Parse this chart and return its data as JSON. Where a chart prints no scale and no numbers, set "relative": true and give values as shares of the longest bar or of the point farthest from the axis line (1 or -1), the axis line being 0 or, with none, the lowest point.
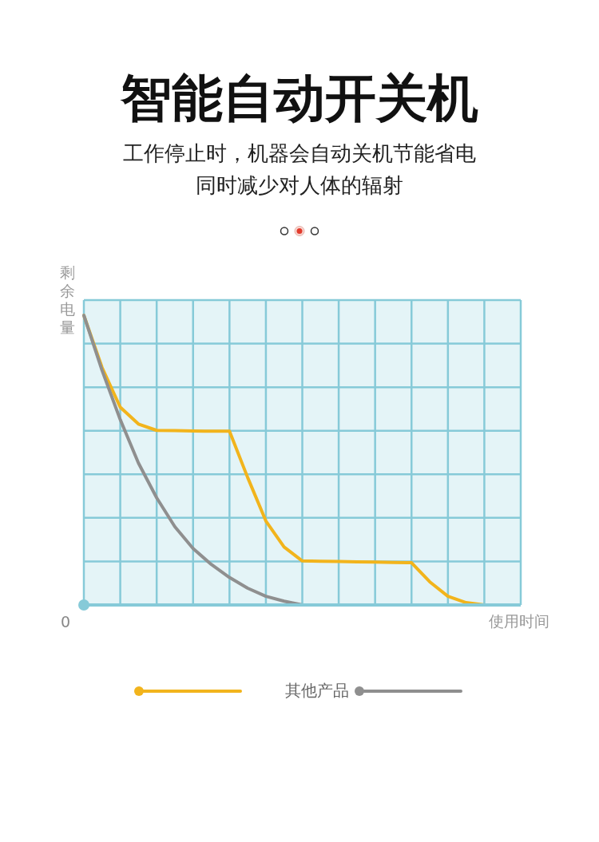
{
  "chart_data": {
    "type": "line",
    "relative": true,
    "title": "智能自动开关机",
    "subtitle": "工作停止时，机器会自动关机节能省电同时减少对人体的辐射",
    "xlabel": "使用时间",
    "ylabel": "剩余电量",
    "annotations": [
      "0"
    ],
    "categories": [
      null,
      null,
      null,
      null,
      null,
      null,
      null,
      null,
      null,
      null,
      null,
      null,
      null,
      null,
      null,
      null,
      null,
      null,
      null,
      null,
      null,
      null,
      null,
      null,
      null
    ],
    "grid": true,
    "legend": "bottom",
    "marker": "none",
    "line_style": "solid",
    "series": [
      {
        "color": "#f2b41c",
        "values": [
          1,
          0.82,
          0.683,
          0.625,
          0.603,
          0.602,
          0.601,
          0.6,
          0.6,
          0.44,
          0.29,
          0.2,
          0.152,
          0.151,
          0.15,
          0.149,
          0.148,
          0.147,
          0.146,
          0.08,
          0.03,
          0.008,
          0,
          null,
          null
        ]
      },
      {
        "name": "其他产品",
        "color": "#8f8f8f",
        "values": [
          1,
          0.81,
          0.64,
          0.49,
          0.37,
          0.27,
          0.195,
          0.14,
          0.095,
          0.058,
          0.03,
          0.013,
          0,
          null,
          null,
          null,
          null,
          null,
          null,
          null,
          null,
          null,
          null,
          null,
          null
        ]
      }
    ]
  }
}
